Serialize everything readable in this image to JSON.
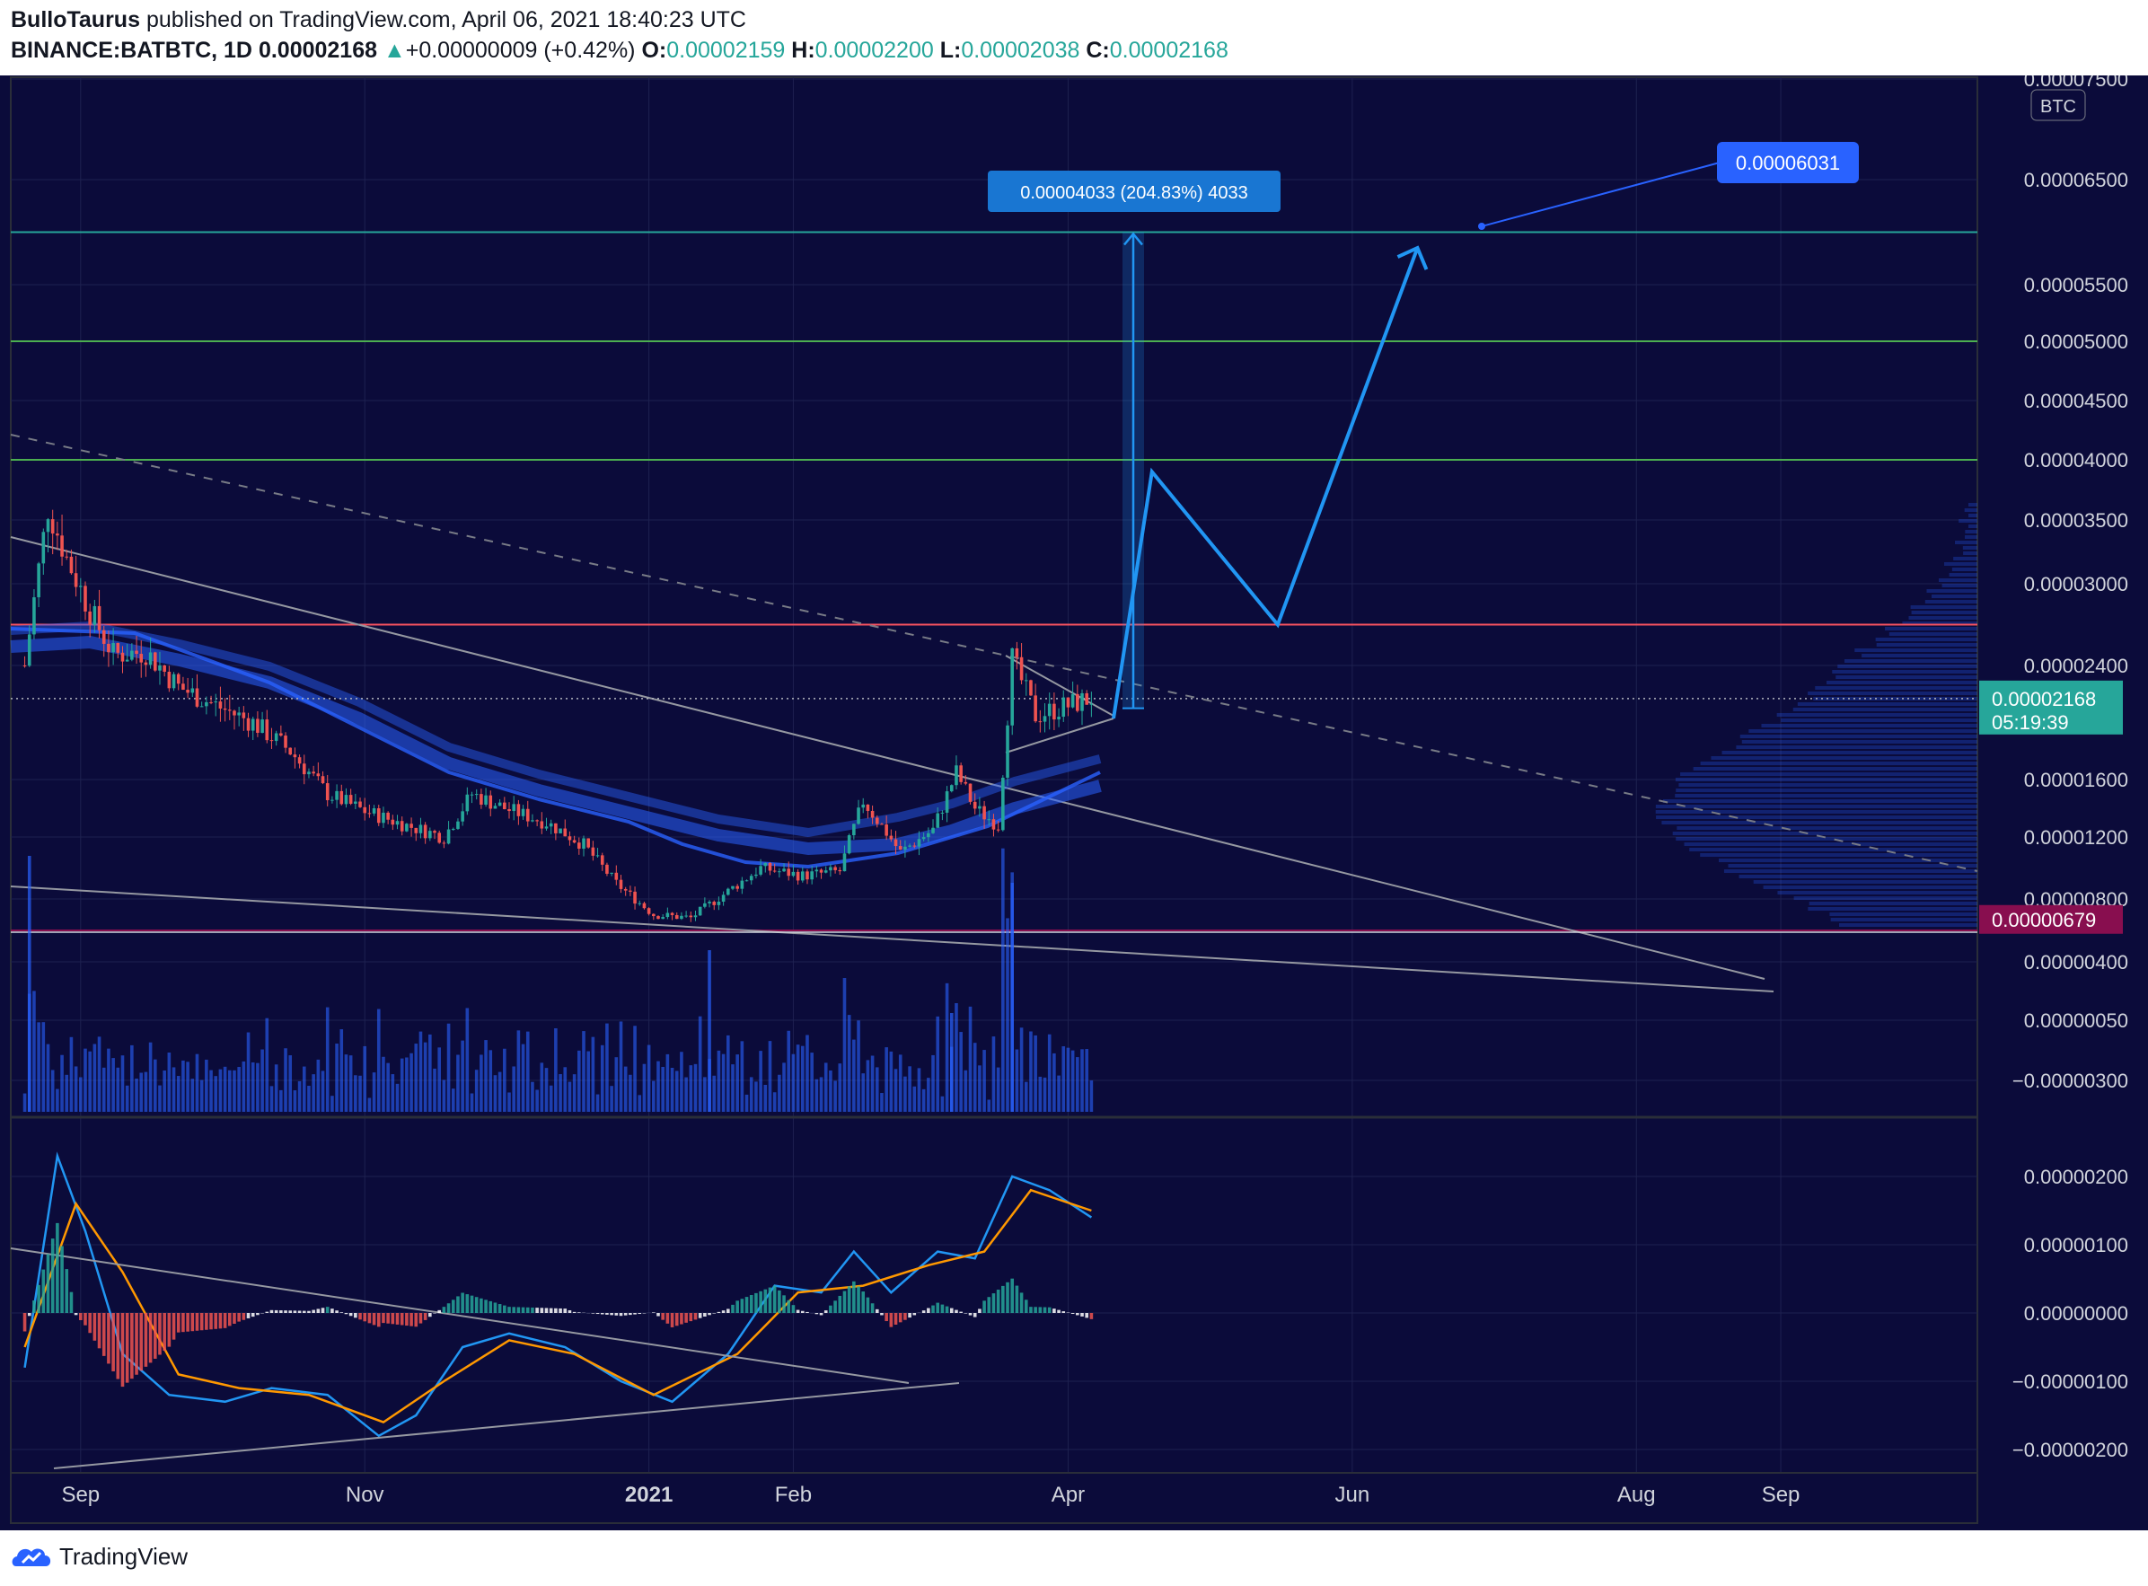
{
  "header": {
    "author": "BulloTaurus",
    "published": "published on TradingView.com, April 06, 2021 18:40:23 UTC",
    "symbol": "BINANCE:BATBTC, 1D",
    "last": "0.00002168",
    "change_arrow": "▲",
    "change": "+0.00000009 (+0.42%)",
    "o_label": "O:",
    "o_value": "0.00002159",
    "h_label": "H:",
    "h_value": "0.00002200",
    "l_label": "L:",
    "l_value": "0.00002038",
    "c_label": "C:",
    "c_value": "0.00002168"
  },
  "footer": {
    "brand": "TradingView",
    "logo_icon": "cloud-logo-icon"
  },
  "colors": {
    "background": "#0b0b3a",
    "up": "#26a69a",
    "down": "#ef5350",
    "ma": "#2962ff",
    "macd": "#2196f3",
    "signal": "#ff9800",
    "resistance_red": "#f7525f",
    "level_green": "#4caf50",
    "level_teal": "#26a69a",
    "projection": "#2196f3",
    "support_label": "#880e4f"
  },
  "chart_data": [
    {
      "type": "candlestick",
      "title": "BINANCE:BATBTC, 1D",
      "currency_badge": "BTC",
      "x_tick_labels": [
        "Sep",
        "Nov",
        "2021",
        "Feb",
        "Apr",
        "Jun",
        "Aug",
        "Sep"
      ],
      "y_tick_labels": [
        "0.00007500",
        "0.00006500",
        "0.00005500",
        "0.00005000",
        "0.00004500",
        "0.00004000",
        "0.00003500",
        "0.00003000",
        "0.00002400",
        "0.00001600",
        "0.00001200",
        "0.00000800",
        "0.00000400",
        "0.00000050",
        "−0.00000300"
      ],
      "price_path": [
        [
          "2020-08-20",
          2.4e-05
        ],
        [
          "2020-08-25",
          3.6e-05
        ],
        [
          "2020-08-29",
          3.2e-05
        ],
        [
          "2020-09-03",
          2.8e-05
        ],
        [
          "2020-09-08",
          2.48e-05
        ],
        [
          "2020-09-15",
          2.5e-05
        ],
        [
          "2020-09-22",
          2.25e-05
        ],
        [
          "2020-09-30",
          2.12e-05
        ],
        [
          "2020-10-08",
          2e-05
        ],
        [
          "2020-10-16",
          1.8e-05
        ],
        [
          "2020-10-24",
          1.5e-05
        ],
        [
          "2020-11-01",
          1.38e-05
        ],
        [
          "2020-11-10",
          1.28e-05
        ],
        [
          "2020-11-18",
          1.2e-05
        ],
        [
          "2020-11-24",
          1.5e-05
        ],
        [
          "2020-12-01",
          1.4e-05
        ],
        [
          "2020-12-10",
          1.3e-05
        ],
        [
          "2020-12-18",
          1.15e-05
        ],
        [
          "2020-12-25",
          9e-06
        ],
        [
          "2021-01-02",
          7e-06
        ],
        [
          "2021-01-10",
          6.8e-06
        ],
        [
          "2021-01-18",
          8.5e-06
        ],
        [
          "2021-01-25",
          1e-05
        ],
        [
          "2021-02-03",
          9.5e-06
        ],
        [
          "2021-02-11",
          9.8e-06
        ],
        [
          "2021-02-16",
          1.45e-05
        ],
        [
          "2021-02-24",
          1.1e-05
        ],
        [
          "2021-03-03",
          1.25e-05
        ],
        [
          "2021-03-08",
          1.65e-05
        ],
        [
          "2021-03-12",
          1.4e-05
        ],
        [
          "2021-03-17",
          1.28e-05
        ],
        [
          "2021-03-20",
          2.45e-05
        ],
        [
          "2021-03-25",
          2.05e-05
        ],
        [
          "2021-03-30",
          2.1e-05
        ],
        [
          "2021-04-06",
          2.17e-05
        ]
      ],
      "last_price": "0.00002168",
      "countdown": "05:19:39",
      "support_price": "0.00000679",
      "horizontal_levels": [
        {
          "value": 6e-05,
          "color_key": "level_teal"
        },
        {
          "value": 5e-05,
          "color_key": "level_green"
        },
        {
          "value": 4e-05,
          "color_key": "level_green"
        },
        {
          "value": 2.7e-05,
          "color_key": "resistance_red"
        },
        {
          "value": 6e-06,
          "color_key": "support_label"
        }
      ],
      "measure_label": "0.00004033 (204.83%) 4033",
      "target_label": "0.00006031",
      "projection_path": [
        [
          "2021-04-06",
          2.1e-05
        ],
        [
          "2021-04-19",
          3.9e-05
        ],
        [
          "2021-05-16",
          2.7e-05
        ],
        [
          "2021-06-15",
          5.85e-05
        ]
      ],
      "volume_profile": "right-side horizontal histogram",
      "grid": true
    },
    {
      "type": "macd",
      "y_tick_labels": [
        "0.00000200",
        "0.00000100",
        "0.00000000",
        "−0.00000100",
        "−0.00000200"
      ],
      "macd_path": [
        [
          "2020-08-20",
          -8e-07
        ],
        [
          "2020-08-27",
          2.3e-06
        ],
        [
          "2020-09-02",
          1.2e-06
        ],
        [
          "2020-09-10",
          -6e-07
        ],
        [
          "2020-09-20",
          -1.2e-06
        ],
        [
          "2020-10-02",
          -1.3e-06
        ],
        [
          "2020-10-12",
          -1.1e-06
        ],
        [
          "2020-10-24",
          -1.2e-06
        ],
        [
          "2020-11-04",
          -1.8e-06
        ],
        [
          "2020-11-12",
          -1.5e-06
        ],
        [
          "2020-11-22",
          -5e-07
        ],
        [
          "2020-12-02",
          -3e-07
        ],
        [
          "2020-12-14",
          -5e-07
        ],
        [
          "2020-12-26",
          -1e-06
        ],
        [
          "2021-01-06",
          -1.3e-06
        ],
        [
          "2021-01-18",
          -6e-07
        ],
        [
          "2021-01-28",
          4e-07
        ],
        [
          "2021-02-07",
          3e-07
        ],
        [
          "2021-02-14",
          9e-07
        ],
        [
          "2021-02-22",
          3e-07
        ],
        [
          "2021-03-04",
          9e-07
        ],
        [
          "2021-03-12",
          8e-07
        ],
        [
          "2021-03-20",
          2e-06
        ],
        [
          "2021-03-28",
          1.8e-06
        ],
        [
          "2021-04-06",
          1.4e-06
        ]
      ],
      "signal_path": [
        [
          "2020-08-20",
          -5e-07
        ],
        [
          "2020-08-31",
          1.6e-06
        ],
        [
          "2020-09-10",
          6e-07
        ],
        [
          "2020-09-22",
          -9e-07
        ],
        [
          "2020-10-05",
          -1.1e-06
        ],
        [
          "2020-10-20",
          -1.2e-06
        ],
        [
          "2020-11-05",
          -1.6e-06
        ],
        [
          "2020-11-18",
          -1e-06
        ],
        [
          "2020-12-02",
          -4e-07
        ],
        [
          "2020-12-16",
          -6e-07
        ],
        [
          "2021-01-02",
          -1.2e-06
        ],
        [
          "2021-01-20",
          -6e-07
        ],
        [
          "2021-02-02",
          3e-07
        ],
        [
          "2021-02-16",
          4e-07
        ],
        [
          "2021-03-02",
          7e-07
        ],
        [
          "2021-03-14",
          9e-07
        ],
        [
          "2021-03-24",
          1.8e-06
        ],
        [
          "2021-04-06",
          1.5e-06
        ]
      ]
    }
  ]
}
